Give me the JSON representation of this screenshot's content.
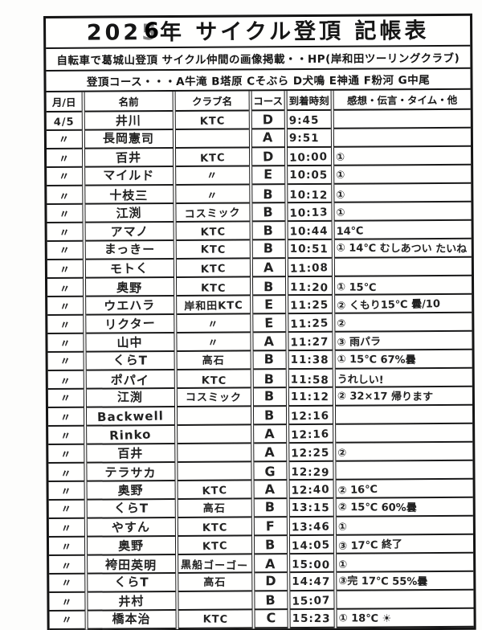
{
  "document": {
    "title": {
      "year_prefix": "202",
      "year_printed_digit": "5",
      "year_overwrite_digit": "6",
      "year_suffix": "年",
      "main": "サイクル登頂 記帳表"
    },
    "subtitle1": "自転車で葛城山登頂 サイクル仲間の画像掲載・・HP(岸和田ツーリングクラブ)",
    "subtitle2": "登頂コース・・・A牛滝 B塔原 Cそぶら D犬鳴 E神通 F粉河 G中尾"
  },
  "table": {
    "columns": [
      "月/日",
      "名前",
      "クラブ名",
      "コース",
      "到着時刻",
      "感想・伝言・タイム・他"
    ],
    "rows": [
      {
        "date": "4/5",
        "name": "井川",
        "club": "KTC",
        "course": "D",
        "time": "9:45",
        "note": ""
      },
      {
        "date": "〃",
        "name": "長岡憲司",
        "club": "",
        "course": "A",
        "time": "9:51",
        "note": ""
      },
      {
        "date": "〃",
        "name": "百井",
        "club": "KTC",
        "course": "D",
        "time": "10:00",
        "note": "①"
      },
      {
        "date": "〃",
        "name": "マイルド",
        "club": "〃",
        "course": "E",
        "time": "10:05",
        "note": "①"
      },
      {
        "date": "〃",
        "name": "十枝三",
        "club": "〃",
        "course": "B",
        "time": "10:12",
        "note": "①"
      },
      {
        "date": "〃",
        "name": "江渕",
        "club": "コスミック",
        "course": "B",
        "time": "10:13",
        "note": "①"
      },
      {
        "date": "〃",
        "name": "アマノ",
        "club": "KTC",
        "course": "B",
        "time": "10:44",
        "note": "14℃"
      },
      {
        "date": "〃",
        "name": "まっきー",
        "club": "KTC",
        "course": "B",
        "time": "10:51",
        "note": "① 14℃ むしあつい たいね"
      },
      {
        "date": "〃",
        "name": "モトく",
        "club": "KTC",
        "course": "A",
        "time": "11:08",
        "note": ""
      },
      {
        "date": "〃",
        "name": "奥野",
        "club": "KTC",
        "course": "B",
        "time": "11:20",
        "note": "① 15℃"
      },
      {
        "date": "〃",
        "name": "ウエハラ",
        "club": "岸和田KTC",
        "course": "E",
        "time": "11:25",
        "note": "② くもり15℃ 曇/10"
      },
      {
        "date": "〃",
        "name": "リクター",
        "club": "〃",
        "course": "E",
        "time": "11:25",
        "note": "②"
      },
      {
        "date": "〃",
        "name": "山中",
        "club": "〃",
        "course": "A",
        "time": "11:27",
        "note": "③ 雨パラ"
      },
      {
        "date": "〃",
        "name": "くらT",
        "club": "高石",
        "course": "B",
        "time": "11:38",
        "note": "① 15℃ 67%曇"
      },
      {
        "date": "〃",
        "name": "ポパイ",
        "club": "KTC",
        "course": "B",
        "time": "11:58",
        "note": "うれしい!"
      },
      {
        "date": "〃",
        "name": "江渕",
        "club": "コスミック",
        "course": "B",
        "time": "11:12",
        "note": "② 32×17 帰ります"
      },
      {
        "date": "〃",
        "name": "Backwell",
        "club": "",
        "course": "B",
        "time": "12:16",
        "note": ""
      },
      {
        "date": "〃",
        "name": "Rinko",
        "club": "",
        "course": "A",
        "time": "12:16",
        "note": ""
      },
      {
        "date": "〃",
        "name": "百井",
        "club": "",
        "course": "A",
        "time": "12:25",
        "note": "②"
      },
      {
        "date": "〃",
        "name": "テラサカ",
        "club": "",
        "course": "G",
        "time": "12:29",
        "note": ""
      },
      {
        "date": "〃",
        "name": "奥野",
        "club": "KTC",
        "course": "A",
        "time": "12:40",
        "note": "② 16℃"
      },
      {
        "date": "〃",
        "name": "くらT",
        "club": "高石",
        "course": "B",
        "time": "13:15",
        "note": "② 15℃ 60%曇"
      },
      {
        "date": "〃",
        "name": "やすん",
        "club": "KTC",
        "course": "F",
        "time": "13:46",
        "note": "①"
      },
      {
        "date": "〃",
        "name": "奥野",
        "club": "KTC",
        "course": "B",
        "time": "14:05",
        "note": "③ 17℃ 終了"
      },
      {
        "date": "〃",
        "name": "袴田英明",
        "club": "黒船ゴーゴー",
        "course": "A",
        "time": "15:00",
        "note": "①"
      },
      {
        "date": "〃",
        "name": "くらT",
        "club": "高石",
        "course": "D",
        "time": "14:47",
        "note": "③完 17℃ 55%曇"
      },
      {
        "date": "〃",
        "name": "井村",
        "club": "",
        "course": "B",
        "time": "15:07",
        "note": ""
      },
      {
        "date": "〃",
        "name": "橋本治",
        "club": "KTC",
        "course": "C",
        "time": "15:23",
        "note": "① 18℃ ☀"
      }
    ]
  }
}
